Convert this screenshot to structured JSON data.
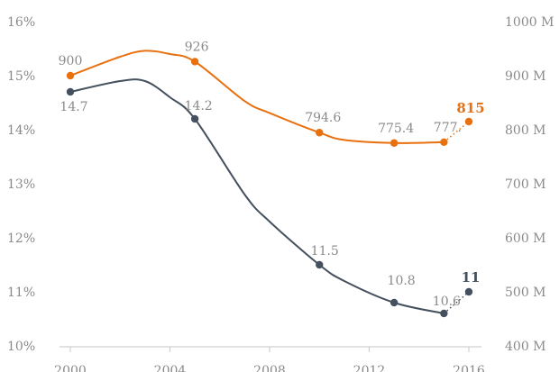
{
  "chart_data": {
    "type": "line",
    "title": "",
    "xlabel": "",
    "ylabel_left": "",
    "ylabel_right": "",
    "x_ticks": [
      "2000",
      "2004",
      "2008",
      "2012",
      "2016"
    ],
    "left_axis": {
      "ylim": [
        10,
        16
      ],
      "ticks": [
        "10%",
        "11%",
        "12%",
        "13%",
        "14%",
        "15%",
        "16%"
      ]
    },
    "right_axis": {
      "ylim": [
        400,
        1000
      ],
      "ticks": [
        "400 M",
        "500 M",
        "600 M",
        "700 M",
        "800 M",
        "900 M",
        "1000 M"
      ]
    },
    "grid": false,
    "colors": {
      "orange": "#e8700f",
      "slate": "#44505e",
      "muted": "#8a8a8a",
      "axis": "#d0d0d0"
    },
    "series": [
      {
        "axis": "right",
        "color": "#e8700f",
        "line": [
          {
            "x": 2000,
            "y": 900
          },
          {
            "x": 2002,
            "y": 935
          },
          {
            "x": 2003,
            "y": 946
          },
          {
            "x": 2004,
            "y": 940
          },
          {
            "x": 2005,
            "y": 926
          },
          {
            "x": 2007,
            "y": 853
          },
          {
            "x": 2008,
            "y": 831
          },
          {
            "x": 2010,
            "y": 794.6
          },
          {
            "x": 2011,
            "y": 781
          },
          {
            "x": 2013,
            "y": 775.4
          },
          {
            "x": 2015,
            "y": 777
          }
        ],
        "points": [
          {
            "x": 2000,
            "y": 900,
            "label": "900"
          },
          {
            "x": 2005,
            "y": 926,
            "label": "926"
          },
          {
            "x": 2010,
            "y": 794.6,
            "label": "794.6"
          },
          {
            "x": 2013,
            "y": 775.4,
            "label": "775.4"
          },
          {
            "x": 2015,
            "y": 777,
            "label": "777."
          },
          {
            "x": 2016,
            "y": 815,
            "label": "815",
            "highlight": true
          }
        ]
      },
      {
        "axis": "left",
        "color": "#44505e",
        "line": [
          {
            "x": 2000,
            "y": 14.7
          },
          {
            "x": 2002,
            "y": 14.9
          },
          {
            "x": 2003,
            "y": 14.9
          },
          {
            "x": 2004,
            "y": 14.6
          },
          {
            "x": 2005,
            "y": 14.2
          },
          {
            "x": 2007,
            "y": 12.8
          },
          {
            "x": 2008,
            "y": 12.3
          },
          {
            "x": 2010,
            "y": 11.5
          },
          {
            "x": 2011,
            "y": 11.2
          },
          {
            "x": 2013,
            "y": 10.8
          },
          {
            "x": 2015,
            "y": 10.6
          }
        ],
        "points": [
          {
            "x": 2000,
            "y": 14.7,
            "label": "14.7"
          },
          {
            "x": 2005,
            "y": 14.2,
            "label": "14.2"
          },
          {
            "x": 2010,
            "y": 11.5,
            "label": "11.5"
          },
          {
            "x": 2013,
            "y": 10.8,
            "label": "10.8"
          },
          {
            "x": 2015,
            "y": 10.6,
            "label": "10.6"
          },
          {
            "x": 2016,
            "y": 11,
            "label": "11",
            "highlight": true
          }
        ]
      }
    ]
  }
}
